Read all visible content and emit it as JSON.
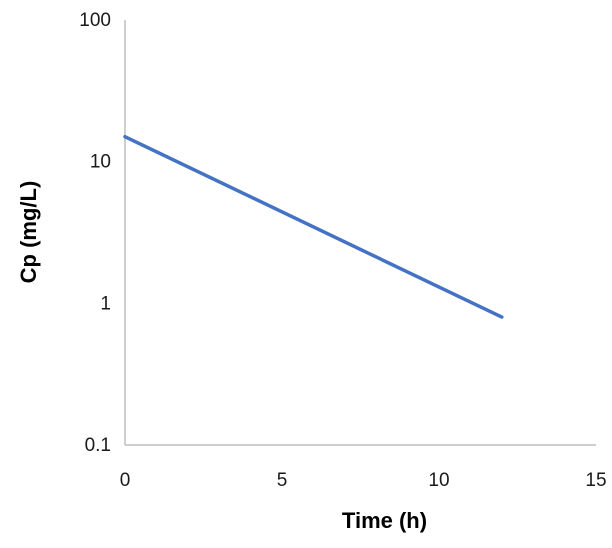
{
  "chart_data": {
    "type": "line",
    "title": "",
    "xlabel": "Time (h)",
    "ylabel": "Cp (mg/L)",
    "xlim": [
      0,
      15
    ],
    "ylim": [
      0.1,
      100
    ],
    "y_scale": "log",
    "grid": false,
    "x_ticks": [
      0,
      5,
      10,
      15
    ],
    "x_tick_labels": [
      "0",
      "5",
      "10",
      "15"
    ],
    "y_ticks": [
      0.1,
      1,
      10,
      100
    ],
    "y_tick_labels": [
      "0.1",
      "1",
      "10",
      "100"
    ],
    "series": [
      {
        "color": "#4472c4",
        "x": [
          0,
          12
        ],
        "y": [
          15,
          0.8
        ]
      }
    ]
  }
}
